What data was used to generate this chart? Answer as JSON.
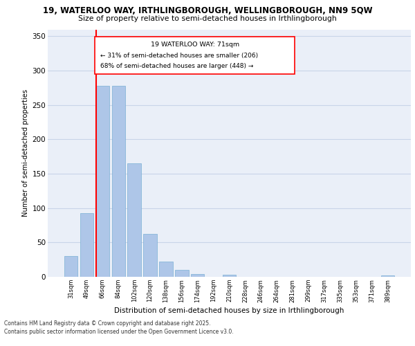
{
  "title_line1": "19, WATERLOO WAY, IRTHLINGBOROUGH, WELLINGBOROUGH, NN9 5QW",
  "title_line2": "Size of property relative to semi-detached houses in Irthlingborough",
  "xlabel": "Distribution of semi-detached houses by size in Irthlingborough",
  "ylabel": "Number of semi-detached properties",
  "categories": [
    "31sqm",
    "49sqm",
    "66sqm",
    "84sqm",
    "102sqm",
    "120sqm",
    "138sqm",
    "156sqm",
    "174sqm",
    "192sqm",
    "210sqm",
    "228sqm",
    "246sqm",
    "264sqm",
    "281sqm",
    "299sqm",
    "317sqm",
    "335sqm",
    "353sqm",
    "371sqm",
    "389sqm"
  ],
  "values": [
    30,
    93,
    278,
    278,
    165,
    62,
    22,
    10,
    4,
    0,
    3,
    0,
    0,
    0,
    0,
    0,
    0,
    0,
    0,
    0,
    2
  ],
  "bar_color": "#aec6e8",
  "bar_edge_color": "#7aafd4",
  "grid_color": "#c8d4e8",
  "bg_color": "#eaeff8",
  "annotation_title": "19 WATERLOO WAY: 71sqm",
  "annotation_line1": "← 31% of semi-detached houses are smaller (206)",
  "annotation_line2": "68% of semi-detached houses are larger (448) →",
  "footer_line1": "Contains HM Land Registry data © Crown copyright and database right 2025.",
  "footer_line2": "Contains public sector information licensed under the Open Government Licence v3.0.",
  "ylim": [
    0,
    360
  ],
  "yticks": [
    0,
    50,
    100,
    150,
    200,
    250,
    300,
    350
  ]
}
